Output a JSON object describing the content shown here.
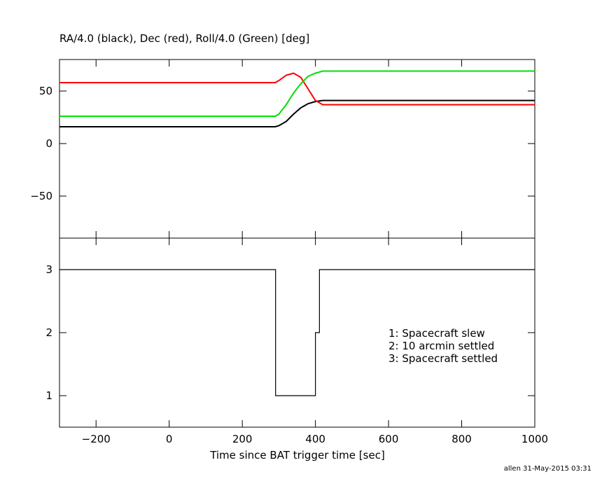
{
  "chart_data": [
    {
      "type": "line",
      "title": "RA/4.0 (black), Dec (red), Roll/4.0 (Green) [deg]",
      "x": [
        -300,
        290,
        300,
        320,
        340,
        360,
        380,
        400,
        420,
        1000
      ],
      "series": [
        {
          "color": "#000000",
          "values": [
            16,
            16,
            17,
            21,
            28,
            34,
            38,
            40,
            41,
            41
          ]
        },
        {
          "color": "#ff0000",
          "values": [
            58,
            58,
            60,
            65,
            67,
            63,
            52,
            41,
            37,
            37
          ]
        },
        {
          "color": "#00e000",
          "values": [
            26,
            26,
            28,
            37,
            48,
            57,
            64,
            67,
            69,
            69
          ]
        }
      ],
      "xlim": [
        -300,
        1000
      ],
      "xticks": [
        -200,
        0,
        200,
        400,
        600,
        800,
        1000
      ],
      "ylim": [
        -90,
        80
      ],
      "yticks": [
        {
          "value": -50,
          "label": "−50"
        },
        0,
        50
      ]
    },
    {
      "type": "line",
      "x_label": "Time since BAT trigger time [sec]",
      "x": [
        -300,
        291,
        291,
        400,
        400,
        411,
        411,
        1000
      ],
      "series": [
        {
          "color": "#000000",
          "values": [
            3,
            3,
            1,
            1,
            2,
            2,
            3,
            3
          ]
        }
      ],
      "xlim": [
        -300,
        1000
      ],
      "xticks": [
        {
          "value": -200,
          "label": "−200"
        },
        0,
        200,
        400,
        600,
        800,
        1000
      ],
      "ylim": [
        0.5,
        3.5
      ],
      "yticks": [
        1,
        2,
        3
      ],
      "annotations": [
        "1: Spacecraft slew",
        "2: 10 arcmin settled",
        "3: Spacecraft settled"
      ]
    }
  ],
  "footer": "allen 31-May-2015 03:31"
}
